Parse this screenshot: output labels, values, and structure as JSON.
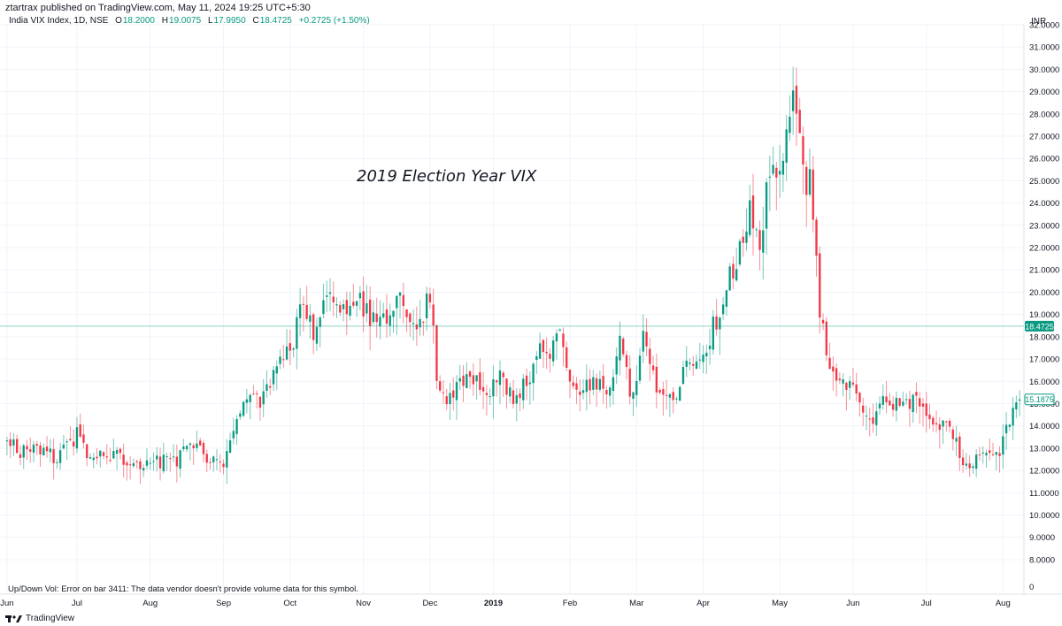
{
  "header": {
    "published_by": "ztartrax published on TradingView.com, May 11, 2024 19:25 UTC+5:30"
  },
  "legend": {
    "symbol": "India VIX Index, 1D, NSE",
    "open_label": "O",
    "open": "18.2000",
    "high_label": "H",
    "high": "19.0075",
    "low_label": "L",
    "low": "17.9950",
    "close_label": "C",
    "close": "18.4725",
    "change": "+0.2725 (+1.50%)"
  },
  "currency": "INR",
  "annotation": "2019 Election Year VIX",
  "volume_error": "Up/Down Vol: Error on bar 3411: The data vendor doesn't provide volume data for this symbol.",
  "footer": {
    "brand": "TradingView"
  },
  "colors": {
    "up": "#089981",
    "down": "#f23645",
    "grid": "#f0f3fa",
    "price_line": "#089981"
  },
  "chart_data": {
    "type": "candlestick",
    "title": "2019 Election Year VIX",
    "ylim": [
      7.4,
      32
    ],
    "y_ticks": [
      "32.0000",
      "31.0000",
      "30.0000",
      "29.0000",
      "28.0000",
      "27.0000",
      "26.0000",
      "25.0000",
      "24.0000",
      "23.0000",
      "22.0000",
      "21.0000",
      "20.0000",
      "19.0000",
      "18.0000",
      "17.0000",
      "16.0000",
      "15.0000",
      "14.0000",
      "13.0000",
      "12.0000",
      "11.0000",
      "10.0000",
      "9.0000",
      "8.0000"
    ],
    "x_ticks": [
      "Jun",
      "Jul",
      "Aug",
      "Sep",
      "Oct",
      "Nov",
      "Dec",
      "2019",
      "Feb",
      "Mar",
      "Apr",
      "May",
      "Jun",
      "Jul",
      "Aug"
    ],
    "x_tick_bars": [
      0,
      21,
      43,
      65,
      85,
      107,
      127,
      146,
      169,
      189,
      209,
      232,
      254,
      276,
      299
    ],
    "volume_axis_label": "0",
    "last_price": 18.4725,
    "last_price_label": "18.4725",
    "current_value": 15.1875,
    "current_value_label": "15.1875",
    "anchors": [
      [
        0,
        13.3
      ],
      [
        5,
        12.8
      ],
      [
        10,
        13.0
      ],
      [
        15,
        12.5
      ],
      [
        21,
        13.6
      ],
      [
        25,
        12.6
      ],
      [
        32,
        12.7
      ],
      [
        40,
        12.3
      ],
      [
        43,
        12.5
      ],
      [
        50,
        12.3
      ],
      [
        55,
        13.4
      ],
      [
        60,
        12.6
      ],
      [
        65,
        12.4
      ],
      [
        68,
        13.8
      ],
      [
        72,
        15.2
      ],
      [
        76,
        15.0
      ],
      [
        79,
        15.8
      ],
      [
        82,
        17.6
      ],
      [
        85,
        17.1
      ],
      [
        89,
        19.8
      ],
      [
        92,
        18.2
      ],
      [
        96,
        20.0
      ],
      [
        100,
        18.8
      ],
      [
        105,
        19.9
      ],
      [
        110,
        18.7
      ],
      [
        115,
        19.2
      ],
      [
        118,
        19.9
      ],
      [
        122,
        18.4
      ],
      [
        127,
        19.7
      ],
      [
        129,
        16.4
      ],
      [
        132,
        15.0
      ],
      [
        136,
        15.8
      ],
      [
        140,
        16.2
      ],
      [
        144,
        15.3
      ],
      [
        148,
        16.6
      ],
      [
        150,
        15.8
      ],
      [
        153,
        15.2
      ],
      [
        156,
        16.0
      ],
      [
        160,
        17.4
      ],
      [
        164,
        17.5
      ],
      [
        166,
        18.6
      ],
      [
        169,
        16.3
      ],
      [
        173,
        15.4
      ],
      [
        176,
        16.1
      ],
      [
        180,
        15.3
      ],
      [
        184,
        17.9
      ],
      [
        187,
        15.7
      ],
      [
        189,
        15.6
      ],
      [
        191,
        18.6
      ],
      [
        194,
        16.1
      ],
      [
        197,
        15.3
      ],
      [
        201,
        15.6
      ],
      [
        205,
        16.8
      ],
      [
        209,
        17.3
      ],
      [
        214,
        19.2
      ],
      [
        218,
        21.1
      ],
      [
        223,
        23.5
      ],
      [
        226,
        22.2
      ],
      [
        229,
        25.6
      ],
      [
        233,
        26.0
      ],
      [
        236,
        28.6
      ],
      [
        238,
        27.7
      ],
      [
        240,
        24.3
      ],
      [
        241,
        25.6
      ],
      [
        244,
        19.2
      ],
      [
        248,
        16.1
      ],
      [
        252,
        16.0
      ],
      [
        256,
        15.1
      ],
      [
        260,
        14.3
      ],
      [
        264,
        15.4
      ],
      [
        268,
        14.8
      ],
      [
        272,
        15.1
      ],
      [
        276,
        14.8
      ],
      [
        280,
        14.1
      ],
      [
        284,
        13.6
      ],
      [
        288,
        12.1
      ],
      [
        291,
        12.6
      ],
      [
        295,
        13.0
      ],
      [
        298,
        12.6
      ],
      [
        301,
        14.3
      ],
      [
        304,
        15.1875
      ]
    ]
  }
}
